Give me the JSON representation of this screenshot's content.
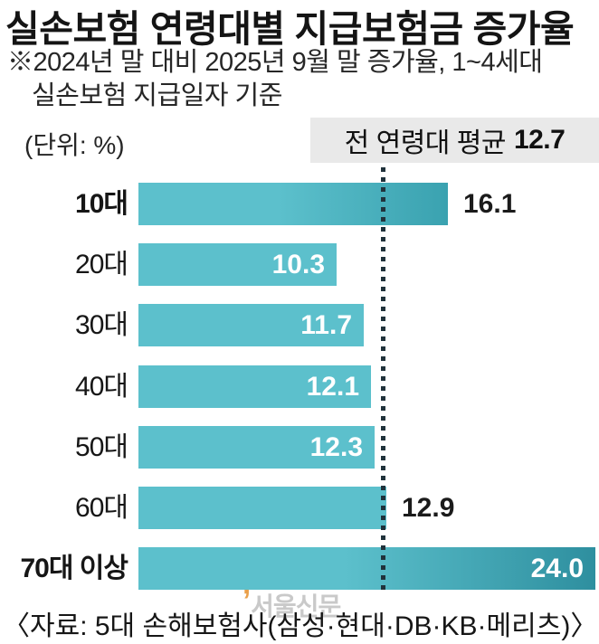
{
  "header": {
    "title": "실손보험 연령대별 지급보험금 증가율",
    "note_line1": "※2024년 말 대비 2025년 9월 말 증가율, 1~4세대",
    "note_line2": "실손보험 지급일자 기준",
    "unit_label": "(단위: %)"
  },
  "average": {
    "label_prefix": "전 연령대 평균",
    "value": "12.7"
  },
  "chart_data": {
    "type": "bar",
    "orientation": "horizontal",
    "title": "실손보험 연령대별 지급보험금 증가율",
    "unit": "%",
    "average": 12.7,
    "xlim": [
      0,
      24
    ],
    "categories": [
      "10대",
      "20대",
      "30대",
      "40대",
      "50대",
      "60대",
      "70대 이상"
    ],
    "values": [
      16.1,
      10.3,
      11.7,
      12.1,
      12.3,
      12.9,
      24.0
    ],
    "rows": [
      {
        "category": "10대",
        "value": 16.1,
        "value_label": "16.1",
        "label_position": "outside",
        "emphasis": true,
        "gradient": true
      },
      {
        "category": "20대",
        "value": 10.3,
        "value_label": "10.3",
        "label_position": "inside",
        "emphasis": false,
        "gradient": false
      },
      {
        "category": "30대",
        "value": 11.7,
        "value_label": "11.7",
        "label_position": "inside",
        "emphasis": false,
        "gradient": false
      },
      {
        "category": "40대",
        "value": 12.1,
        "value_label": "12.1",
        "label_position": "inside",
        "emphasis": false,
        "gradient": false
      },
      {
        "category": "50대",
        "value": 12.3,
        "value_label": "12.3",
        "label_position": "inside",
        "emphasis": false,
        "gradient": false
      },
      {
        "category": "60대",
        "value": 12.9,
        "value_label": "12.9",
        "label_position": "outside",
        "emphasis": false,
        "gradient": false
      },
      {
        "category": "70대 이상",
        "value": 24.0,
        "value_label": "24.0",
        "label_position": "inside",
        "emphasis": true,
        "gradient": true
      }
    ],
    "colors": {
      "bar": "#5cc0cc",
      "bar_gradient_end_short": "#3aa2b0",
      "bar_gradient_end_long": "#2e8f9f",
      "reference_line": "#20323b"
    }
  },
  "watermark": {
    "text": "서울신문"
  },
  "footer": {
    "source": "〈자료: 5대 손해보험사(삼성·현대·DB·KB·메리츠)〉"
  }
}
